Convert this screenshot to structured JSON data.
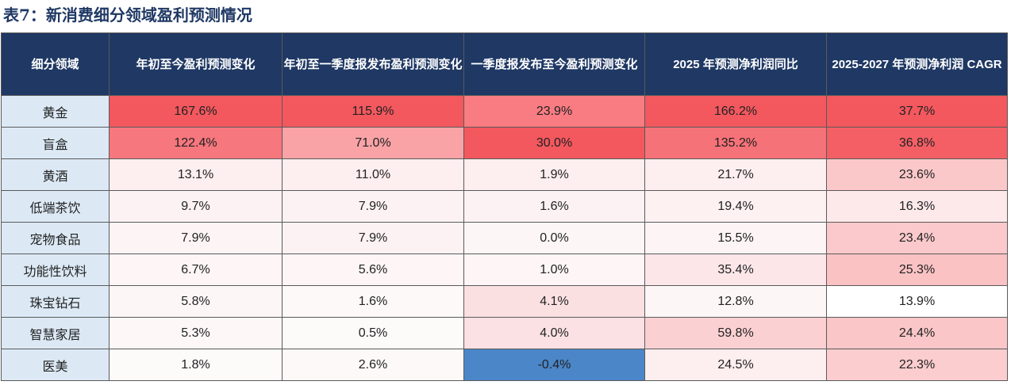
{
  "title": "表7：新消费细分领域盈利预测情况",
  "table": {
    "headers": [
      "细分领域",
      "年初至今盈利预测变化",
      "年初至一季度报发布盈利预测变化",
      "一季度报发布至今盈利预测变化",
      "2025 年预测净利润同比",
      "2025-2027 年预测净利润 CAGR"
    ],
    "rows": [
      {
        "category": "黄金",
        "cells": [
          {
            "text": "167.6%",
            "bg": "#f2585e"
          },
          {
            "text": "115.9%",
            "bg": "#f2585e"
          },
          {
            "text": "23.9%",
            "bg": "#f87c82"
          },
          {
            "text": "166.2%",
            "bg": "#f2585e"
          },
          {
            "text": "37.7%",
            "bg": "#f2585e"
          }
        ]
      },
      {
        "category": "盲盒",
        "cells": [
          {
            "text": "122.4%",
            "bg": "#f6777d"
          },
          {
            "text": "71.0%",
            "bg": "#f9a3a7"
          },
          {
            "text": "30.0%",
            "bg": "#f2585e"
          },
          {
            "text": "135.2%",
            "bg": "#f57278"
          },
          {
            "text": "36.8%",
            "bg": "#f35f65"
          }
        ]
      },
      {
        "category": "黄酒",
        "cells": [
          {
            "text": "13.1%",
            "bg": "#fdeeef"
          },
          {
            "text": "11.0%",
            "bg": "#fdeeef"
          },
          {
            "text": "1.9%",
            "bg": "#fdeeef"
          },
          {
            "text": "21.7%",
            "bg": "#fdeeef"
          },
          {
            "text": "23.6%",
            "bg": "#fbc8ca"
          }
        ]
      },
      {
        "category": "低端茶饮",
        "cells": [
          {
            "text": "9.7%",
            "bg": "#fdf2f3"
          },
          {
            "text": "7.9%",
            "bg": "#fdf2f3"
          },
          {
            "text": "1.6%",
            "bg": "#fdf2f3"
          },
          {
            "text": "19.4%",
            "bg": "#fdf1f2"
          },
          {
            "text": "16.3%",
            "bg": "#fde9ea"
          }
        ]
      },
      {
        "category": "宠物食品",
        "cells": [
          {
            "text": "7.9%",
            "bg": "#fdf4f5"
          },
          {
            "text": "7.9%",
            "bg": "#fdf2f3"
          },
          {
            "text": "0.0%",
            "bg": "#fdf6f7"
          },
          {
            "text": "15.5%",
            "bg": "#fdf4f5"
          },
          {
            "text": "23.4%",
            "bg": "#fbc9cb"
          }
        ]
      },
      {
        "category": "功能性饮料",
        "cells": [
          {
            "text": "6.7%",
            "bg": "#fdf5f6"
          },
          {
            "text": "5.6%",
            "bg": "#fdf5f6"
          },
          {
            "text": "1.0%",
            "bg": "#fdf5f6"
          },
          {
            "text": "35.4%",
            "bg": "#fce6e8"
          },
          {
            "text": "25.3%",
            "bg": "#fbc2c4"
          }
        ]
      },
      {
        "category": "珠宝钻石",
        "cells": [
          {
            "text": "5.8%",
            "bg": "#fdf6f7"
          },
          {
            "text": "1.6%",
            "bg": "#fdf9f9"
          },
          {
            "text": "4.1%",
            "bg": "#fbe0e2"
          },
          {
            "text": "12.8%",
            "bg": "#fdf6f7"
          },
          {
            "text": "13.9%",
            "bg": "#ffffff"
          }
        ]
      },
      {
        "category": "智慧家居",
        "cells": [
          {
            "text": "5.3%",
            "bg": "#fdf7f8"
          },
          {
            "text": "0.5%",
            "bg": "#fdfafa"
          },
          {
            "text": "4.0%",
            "bg": "#fbe1e3"
          },
          {
            "text": "59.8%",
            "bg": "#fbd0d3"
          },
          {
            "text": "24.4%",
            "bg": "#fbc6c8"
          }
        ]
      },
      {
        "category": "医美",
        "cells": [
          {
            "text": "1.8%",
            "bg": "#fdfafa"
          },
          {
            "text": "2.6%",
            "bg": "#fdf9f9"
          },
          {
            "text": "-0.4%",
            "bg": "#4a86c8"
          },
          {
            "text": "24.5%",
            "bg": "#fdeeef"
          },
          {
            "text": "22.3%",
            "bg": "#fbcdcf"
          }
        ]
      }
    ]
  }
}
